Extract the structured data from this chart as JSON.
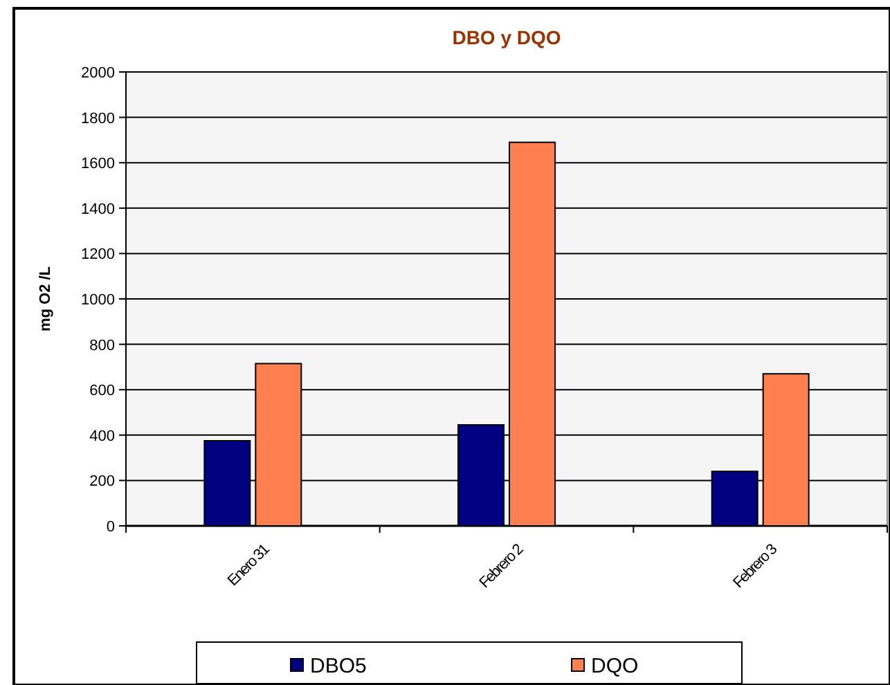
{
  "chart_data": {
    "type": "bar",
    "title": "DBO y DQO",
    "ylabel": "mg O2 /L",
    "categories": [
      "Enero 31",
      "Febrero 2",
      "Febrero 3"
    ],
    "series": [
      {
        "name": "DBO5",
        "color": "#000080",
        "values": [
          375,
          445,
          240
        ]
      },
      {
        "name": "DQO",
        "color": "#ff7f50",
        "values": [
          715,
          1690,
          670
        ]
      }
    ],
    "ylim": [
      0,
      2000
    ],
    "yticks": [
      0,
      200,
      400,
      600,
      800,
      1000,
      1200,
      1400,
      1600,
      1800,
      2000
    ],
    "grid": "y",
    "legend": "bottom"
  }
}
